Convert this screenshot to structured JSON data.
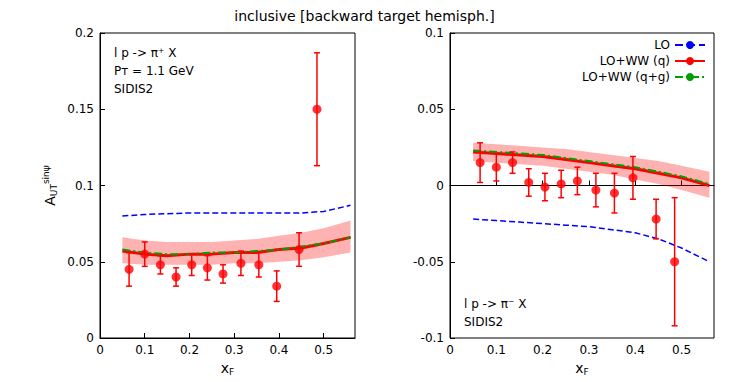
{
  "title": "inclusive [backward target hemisph.]",
  "chart_data": [
    {
      "type": "line",
      "xlabel": {
        "text": "x",
        "subscript": "F"
      },
      "ylabel": {
        "text": "A",
        "subscript": "UT",
        "superscript": "sinψ"
      },
      "xlim": [
        0,
        0.57
      ],
      "ylim": [
        0,
        0.2
      ],
      "xticks": [
        0,
        0.1,
        0.2,
        0.3,
        0.4,
        0.5
      ],
      "yticks": [
        0,
        0.05,
        0.1,
        0.15,
        0.2
      ],
      "annotations": [
        "l p -> π⁺ X",
        "Pᴛ = 1.1 GeV",
        "SIDIS2"
      ],
      "series": [
        {
          "type": "line",
          "color": "#0000ff",
          "line_style": "dashed",
          "x": [
            0.05,
            0.1,
            0.15,
            0.2,
            0.25,
            0.3,
            0.35,
            0.4,
            0.45,
            0.5,
            0.56
          ],
          "values": [
            0.08,
            0.081,
            0.0815,
            0.082,
            0.082,
            0.082,
            0.082,
            0.082,
            0.082,
            0.083,
            0.087
          ]
        },
        {
          "type": "line",
          "color": "#ff0000",
          "line_style": "solid",
          "x": [
            0.05,
            0.1,
            0.15,
            0.2,
            0.25,
            0.3,
            0.35,
            0.4,
            0.45,
            0.5,
            0.56
          ],
          "values": [
            0.057,
            0.055,
            0.054,
            0.055,
            0.055,
            0.056,
            0.056,
            0.058,
            0.059,
            0.062,
            0.066
          ],
          "band_lower": [
            0.049,
            0.048,
            0.048,
            0.048,
            0.048,
            0.049,
            0.049,
            0.05,
            0.051,
            0.053,
            0.056
          ],
          "band_upper": [
            0.066,
            0.064,
            0.063,
            0.063,
            0.063,
            0.064,
            0.065,
            0.067,
            0.069,
            0.072,
            0.077
          ]
        },
        {
          "type": "line",
          "color": "#00a000",
          "line_style": "dashdot",
          "x": [
            0.05,
            0.1,
            0.15,
            0.2,
            0.25,
            0.3,
            0.35,
            0.4,
            0.45,
            0.5,
            0.56
          ],
          "values": [
            0.058,
            0.056,
            0.055,
            0.055,
            0.056,
            0.056,
            0.057,
            0.058,
            0.06,
            0.062,
            0.066
          ]
        }
      ],
      "points": {
        "type": "scatter",
        "color": "#ff0000",
        "marker": "circle",
        "x": [
          0.065,
          0.1,
          0.135,
          0.17,
          0.205,
          0.24,
          0.275,
          0.315,
          0.355,
          0.395,
          0.445,
          0.485
        ],
        "values": [
          0.045,
          0.055,
          0.048,
          0.04,
          0.048,
          0.046,
          0.042,
          0.049,
          0.048,
          0.034,
          0.058,
          0.15
        ],
        "errors": [
          0.011,
          0.008,
          0.006,
          0.006,
          0.007,
          0.008,
          0.006,
          0.008,
          0.008,
          0.01,
          0.011,
          0.037
        ]
      }
    },
    {
      "type": "line",
      "xlabel": {
        "text": "x",
        "subscript": "F"
      },
      "xlim": [
        0,
        0.57
      ],
      "ylim": [
        -0.1,
        0.1
      ],
      "xticks": [
        0,
        0.1,
        0.2,
        0.3,
        0.4,
        0.5
      ],
      "yticks": [
        -0.1,
        -0.05,
        0,
        0.05,
        0.1
      ],
      "legend": "upper right",
      "annotations": [
        "l p -> π⁻ X",
        "SIDIS2"
      ],
      "series": [
        {
          "name": "LO",
          "type": "line",
          "color": "#0000ff",
          "line_style": "dashed",
          "x": [
            0.05,
            0.1,
            0.15,
            0.2,
            0.25,
            0.3,
            0.35,
            0.4,
            0.45,
            0.5,
            0.56
          ],
          "values": [
            -0.022,
            -0.023,
            -0.024,
            -0.025,
            -0.026,
            -0.027,
            -0.029,
            -0.031,
            -0.035,
            -0.041,
            -0.05
          ]
        },
        {
          "name": "LO+WW (q)",
          "type": "line",
          "color": "#ff0000",
          "line_style": "solid",
          "x": [
            0.05,
            0.1,
            0.15,
            0.2,
            0.25,
            0.3,
            0.35,
            0.4,
            0.45,
            0.5,
            0.56
          ],
          "values": [
            0.022,
            0.021,
            0.02,
            0.019,
            0.017,
            0.015,
            0.013,
            0.011,
            0.008,
            0.005,
            0.0
          ],
          "band_lower": [
            0.016,
            0.015,
            0.014,
            0.013,
            0.011,
            0.009,
            0.007,
            0.004,
            0.001,
            -0.003,
            -0.008
          ],
          "band_upper": [
            0.028,
            0.027,
            0.026,
            0.025,
            0.024,
            0.022,
            0.02,
            0.018,
            0.016,
            0.013,
            0.009
          ]
        },
        {
          "name": "LO+WW (q+g)",
          "type": "line",
          "color": "#00a000",
          "line_style": "dashdot",
          "x": [
            0.05,
            0.1,
            0.15,
            0.2,
            0.25,
            0.3,
            0.35,
            0.4,
            0.45,
            0.5,
            0.56
          ],
          "values": [
            0.023,
            0.022,
            0.021,
            0.02,
            0.018,
            0.016,
            0.014,
            0.012,
            0.009,
            0.006,
            0.001
          ]
        }
      ],
      "points": {
        "type": "scatter",
        "color": "#ff0000",
        "marker": "circle",
        "x": [
          0.065,
          0.1,
          0.135,
          0.17,
          0.205,
          0.24,
          0.275,
          0.315,
          0.355,
          0.395,
          0.445,
          0.485
        ],
        "values": [
          0.015,
          0.012,
          0.015,
          0.002,
          -0.001,
          0.001,
          0.003,
          -0.003,
          -0.005,
          0.005,
          -0.022,
          -0.05
        ],
        "errors": [
          0.013,
          0.009,
          0.007,
          0.009,
          0.009,
          0.009,
          0.009,
          0.011,
          0.013,
          0.014,
          0.013,
          0.042
        ]
      }
    }
  ]
}
